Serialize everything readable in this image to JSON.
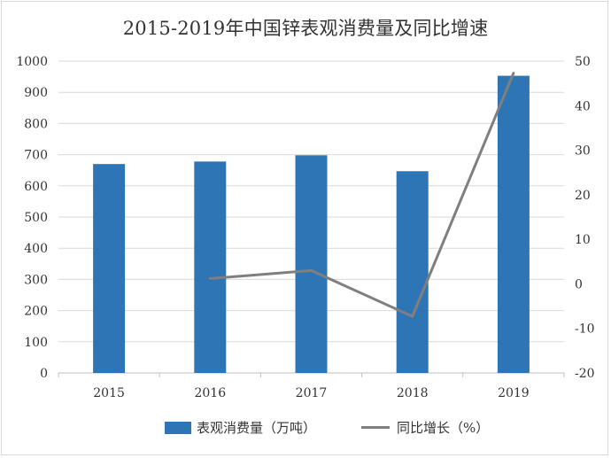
{
  "chart_data": {
    "type": "bar+line",
    "title": "2015-2019年中国锌表观消费量及同比增速",
    "categories": [
      "2015",
      "2016",
      "2017",
      "2018",
      "2019"
    ],
    "series": [
      {
        "name": "表观消费量（万吨）",
        "type": "bar",
        "axis": "left",
        "values": [
          670,
          678,
          698,
          647,
          953
        ]
      },
      {
        "name": "同比增长（%）",
        "type": "line",
        "axis": "right",
        "values": [
          null,
          1.2,
          3.0,
          -7.3,
          47.3
        ]
      }
    ],
    "y_left": {
      "ylim": [
        0,
        1000
      ],
      "ticks": [
        0,
        100,
        200,
        300,
        400,
        500,
        600,
        700,
        800,
        900,
        1000
      ]
    },
    "y_right": {
      "ylim": [
        -20,
        50
      ],
      "ticks": [
        -20,
        -10,
        0,
        10,
        20,
        30,
        40,
        50
      ]
    },
    "grid": true,
    "legend": "bottom",
    "colors": {
      "bar": "#2e75b6",
      "line": "#7f7f7f",
      "grid": "#d9d9d9"
    }
  }
}
